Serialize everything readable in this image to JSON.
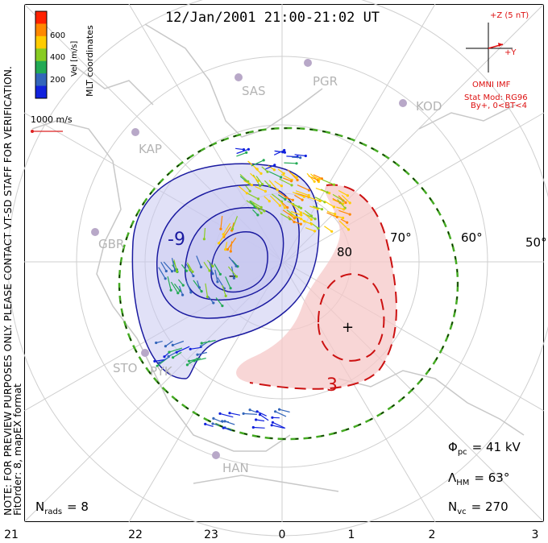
{
  "title": "12/Jan/2001 21:00-21:02 UT",
  "colorbar": {
    "label": "Vel [m/s]",
    "ticks": [
      "600",
      "400",
      "200"
    ],
    "colors": [
      "#ff2200",
      "#ff8800",
      "#ffcc00",
      "#88cc22",
      "#22aa55",
      "#3366bb",
      "#1122dd"
    ]
  },
  "mlt_label": "MLT coordinates",
  "velocity_scale": "1000 m/s",
  "notes": {
    "preview": "NOTE: FOR PREVIEW PURPOSES ONLY. PLEASE CONTACT VT-SD STAFF FOR VERIFICATION.",
    "fit": "FitOrder: 8, mapEX format"
  },
  "imf": {
    "z_label": "+Z (5 nT)",
    "y_label": "+Y",
    "source": "OMNI IMF",
    "stat_mod": "Stat Mod: RG96",
    "condition": "By+, 0<BT<4"
  },
  "stations": [
    "SAS",
    "PGR",
    "KOD",
    "KAP",
    "GBR",
    "STO",
    "PYK",
    "HAN"
  ],
  "latitude_labels": [
    "80",
    "70°",
    "60°",
    "50°"
  ],
  "contour_labels": {
    "negative": "-9",
    "positive": "3"
  },
  "stats": {
    "phi_pc": {
      "symbol": "Φ",
      "sub": "pc",
      "value": "= 41 kV"
    },
    "lambda_hm": {
      "symbol": "Λ",
      "sub": "HM",
      "value": "= 63°"
    },
    "n_vc": {
      "symbol": "N",
      "sub": "vc",
      "value": "= 270"
    },
    "n_rads": {
      "symbol": "N",
      "sub": "rads",
      "value": "= 8"
    }
  },
  "mlt_axis": [
    "21",
    "22",
    "23",
    "0",
    "1",
    "2",
    "3"
  ],
  "colors": {
    "negative_fill": "#c8c8f0",
    "negative_line": "#1a1aa0",
    "positive_fill": "#f5c8c8",
    "positive_line": "#cc1111",
    "boundary": "#44aa22",
    "land": "#c8c8c8"
  }
}
